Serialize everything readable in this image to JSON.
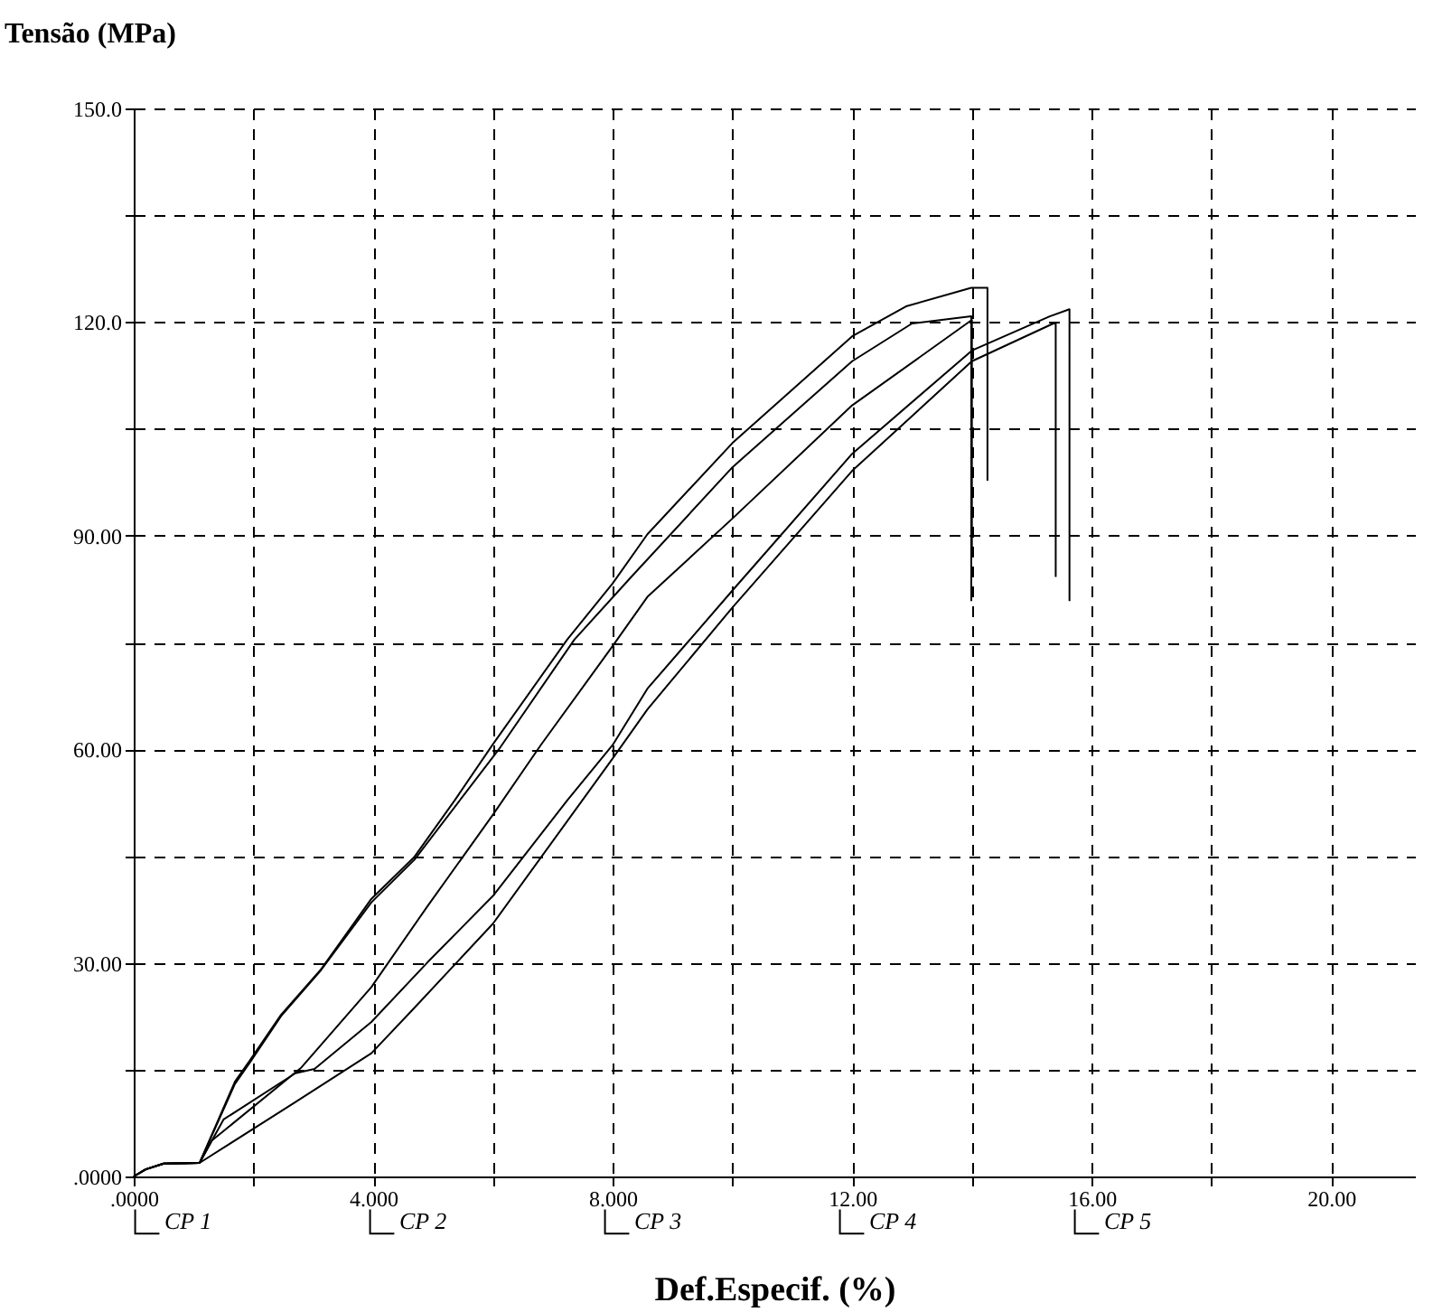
{
  "chart_data": {
    "type": "line",
    "ylabel": "Tensão (MPa)",
    "xlabel": "Def.Especif. (%)",
    "xlim": [
      0,
      21.4
    ],
    "ylim": [
      0,
      150
    ],
    "xticks": [
      {
        "value": 0,
        "label": ".0000"
      },
      {
        "value": 2,
        "label": null
      },
      {
        "value": 4,
        "label": "4.000"
      },
      {
        "value": 6,
        "label": null
      },
      {
        "value": 8,
        "label": "8.000"
      },
      {
        "value": 10,
        "label": null
      },
      {
        "value": 12,
        "label": "12.00"
      },
      {
        "value": 14,
        "label": null
      },
      {
        "value": 16,
        "label": "16.00"
      },
      {
        "value": 18,
        "label": null
      },
      {
        "value": 20,
        "label": "20.00"
      }
    ],
    "yticks": [
      {
        "value": 0,
        "label": ".0000"
      },
      {
        "value": 15,
        "label": null
      },
      {
        "value": 30,
        "label": "30.00"
      },
      {
        "value": 45,
        "label": null
      },
      {
        "value": 60,
        "label": "60.00"
      },
      {
        "value": 75,
        "label": null
      },
      {
        "value": 90,
        "label": "90.00"
      },
      {
        "value": 105,
        "label": null
      },
      {
        "value": 120,
        "label": "120.0"
      },
      {
        "value": 135,
        "label": null
      },
      {
        "value": 150,
        "label": "150.0"
      }
    ],
    "grid": true,
    "legend": "bottom",
    "line_style": "solid",
    "marker": "none",
    "series": [
      {
        "name": "CP 1",
        "color": "#000000",
        "x": [
          0,
          0.2,
          0.5,
          1.1,
          1.69,
          1.94,
          2.46,
          3.13,
          3.97,
          4.69,
          5.36,
          6,
          7.24,
          8,
          8.58,
          10,
          12,
          12.9,
          13.99,
          14.26,
          14.26
        ],
        "values": [
          0,
          1,
          1.8,
          1.9,
          13.3,
          16.3,
          22.7,
          29.1,
          39,
          44.9,
          52.8,
          60.7,
          75.4,
          83.3,
          90.2,
          103,
          118,
          122.2,
          124.8,
          124.8,
          97.7
        ]
      },
      {
        "name": "CP 2",
        "color": "#000000",
        "x": [
          0,
          0.2,
          0.5,
          1.1,
          1.69,
          1.94,
          2.46,
          3.13,
          3.97,
          4.69,
          6.1,
          7.36,
          8.31,
          10,
          12,
          13,
          13.99,
          13.99
        ],
        "values": [
          0,
          1,
          1.8,
          1.9,
          13,
          16,
          22.5,
          29,
          38.5,
          44.5,
          60,
          75.4,
          84.2,
          99.6,
          114.5,
          119.8,
          120.8,
          80.8
        ]
      },
      {
        "name": "CP 3",
        "color": "#000000",
        "x": [
          0,
          0.2,
          0.5,
          1.1,
          1.3,
          2.8,
          3.97,
          4.91,
          6,
          6.8,
          8,
          8.58,
          10,
          12,
          14,
          14
        ],
        "values": [
          0,
          1,
          1.8,
          1.9,
          5,
          15.3,
          26.6,
          38,
          50.8,
          60.6,
          74.5,
          81.4,
          92.4,
          108.3,
          120.3,
          88
        ]
      },
      {
        "name": "CP 4",
        "color": "#000000",
        "x": [
          0,
          0.2,
          0.5,
          1.1,
          1.5,
          2.7,
          3.02,
          3.97,
          4.91,
          6,
          7.24,
          8,
          8.58,
          10,
          12,
          14,
          15.3,
          15.63,
          15.63
        ],
        "values": [
          0,
          1,
          1.8,
          1.9,
          8,
          14.5,
          15.1,
          21.7,
          30.1,
          39.4,
          52.8,
          60.6,
          68.5,
          82.3,
          101.5,
          116,
          120.8,
          121.8,
          80.8
        ]
      },
      {
        "name": "CP 5",
        "color": "#000000",
        "x": [
          0,
          0.2,
          0.5,
          1.1,
          2.69,
          3.97,
          4.69,
          6,
          8,
          8.58,
          10,
          12,
          14,
          15.36,
          15.4,
          15.4
        ],
        "values": [
          0,
          1,
          1.8,
          1.9,
          10.4,
          17.3,
          23.7,
          35.5,
          58.7,
          65.6,
          79.9,
          99.1,
          114.5,
          119.8,
          119.8,
          84.2
        ]
      }
    ]
  }
}
